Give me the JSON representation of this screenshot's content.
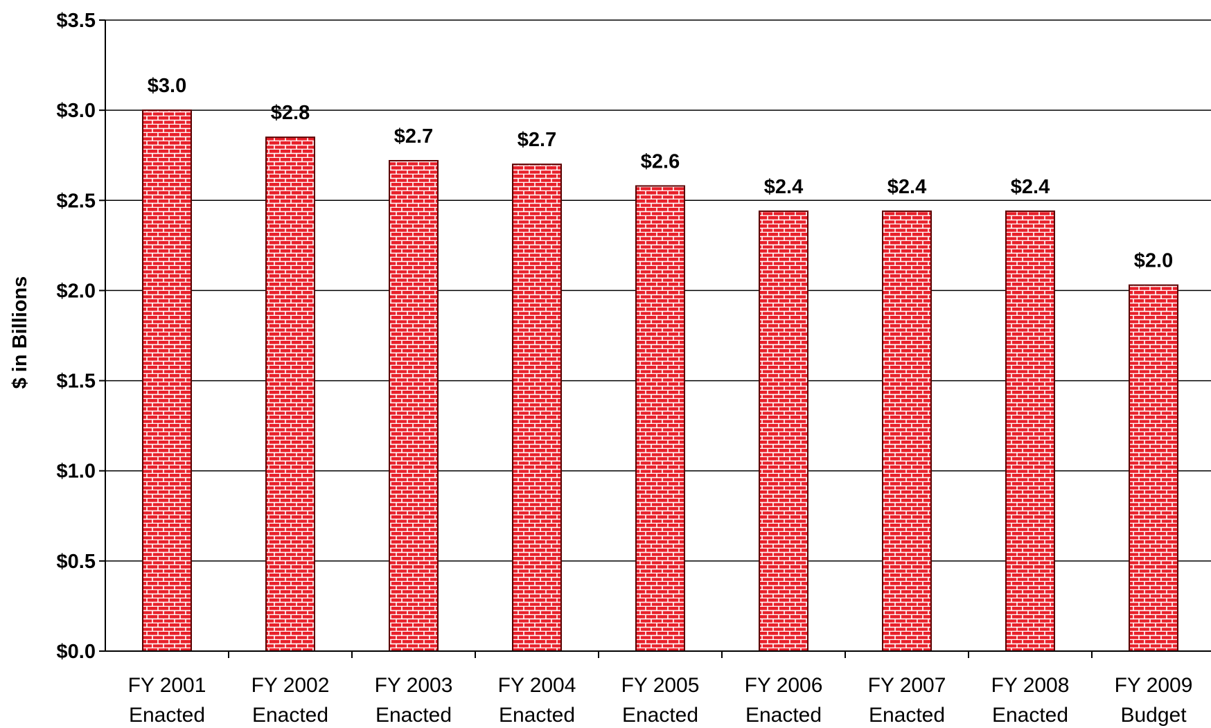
{
  "chart_data": {
    "type": "bar",
    "title": "",
    "xlabel": "",
    "ylabel": "$ in Billions",
    "ylim": [
      0,
      3.5
    ],
    "y_tick_step": 0.5,
    "y_tick_labels": [
      "$0.0",
      "$0.5",
      "$1.0",
      "$1.5",
      "$2.0",
      "$2.5",
      "$3.0",
      "$3.5"
    ],
    "grid": true,
    "legend": "none",
    "bar_color": "#e8202a",
    "bar_pattern": "brick",
    "categories": [
      [
        "FY 2001",
        "Enacted"
      ],
      [
        "FY 2002",
        "Enacted"
      ],
      [
        "FY 2003",
        "Enacted"
      ],
      [
        "FY 2004",
        "Enacted"
      ],
      [
        "FY 2005",
        "Enacted"
      ],
      [
        "FY 2006",
        "Enacted"
      ],
      [
        "FY 2007",
        "Enacted"
      ],
      [
        "FY 2008",
        "Enacted"
      ],
      [
        "FY 2009",
        "Budget"
      ]
    ],
    "values": [
      3.0,
      2.85,
      2.72,
      2.7,
      2.58,
      2.44,
      2.44,
      2.44,
      2.03
    ],
    "data_labels": [
      "$3.0",
      "$2.8",
      "$2.7",
      "$2.7",
      "$2.6",
      "$2.4",
      "$2.4",
      "$2.4",
      "$2.0"
    ]
  }
}
